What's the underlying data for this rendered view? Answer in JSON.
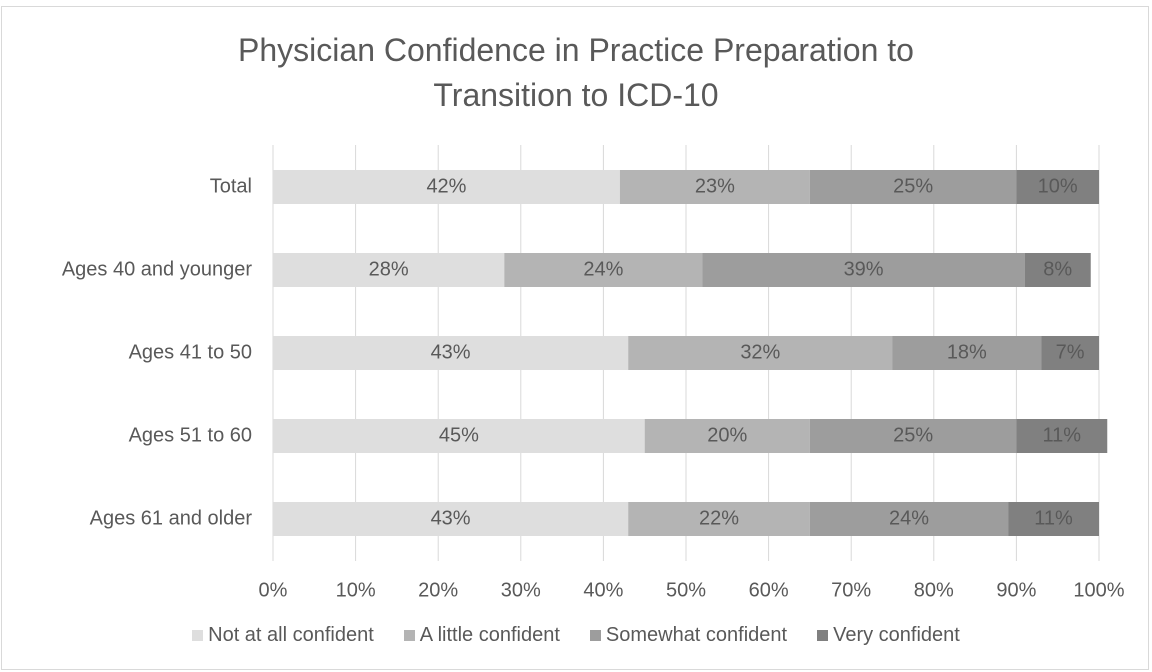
{
  "chart_data": {
    "type": "stacked-bar-horizontal",
    "title": "Physician Confidence in Practice Preparation to Transition to ICD-10",
    "categories": [
      "Total",
      "Ages 40 and younger",
      "Ages 41 to 50",
      "Ages 51 to 60",
      "Ages 61 and older"
    ],
    "series": [
      {
        "name": "Not at all confident",
        "color": "#dedede",
        "values": [
          42,
          28,
          43,
          45,
          43
        ],
        "value_labels": [
          "42%",
          "28%",
          "43%",
          "45%",
          "43%"
        ]
      },
      {
        "name": "A little confident",
        "color": "#b4b4b4",
        "values": [
          23,
          24,
          32,
          20,
          22
        ],
        "value_labels": [
          "23%",
          "24%",
          "32%",
          "20%",
          "22%"
        ]
      },
      {
        "name": "Somewhat confident",
        "color": "#9d9d9d",
        "values": [
          25,
          39,
          18,
          25,
          24
        ],
        "value_labels": [
          "25%",
          "39%",
          "18%",
          "25%",
          "24%"
        ]
      },
      {
        "name": "Very confident",
        "color": "#808080",
        "values": [
          10,
          8,
          7,
          11,
          11
        ],
        "value_labels": [
          "10%",
          "8%",
          "7%",
          "11%",
          "11%"
        ]
      }
    ],
    "xlim": [
      0,
      100
    ],
    "xticks": [
      {
        "value": 0,
        "label": "0%"
      },
      {
        "value": 10,
        "label": "10%"
      },
      {
        "value": 20,
        "label": "20%"
      },
      {
        "value": 30,
        "label": "30%"
      },
      {
        "value": 40,
        "label": "40%"
      },
      {
        "value": 50,
        "label": "50%"
      },
      {
        "value": 60,
        "label": "60%"
      },
      {
        "value": 70,
        "label": "70%"
      },
      {
        "value": 80,
        "label": "80%"
      },
      {
        "value": 90,
        "label": "90%"
      },
      {
        "value": 100,
        "label": "100%"
      }
    ],
    "grid": true,
    "legend": "bottom"
  }
}
